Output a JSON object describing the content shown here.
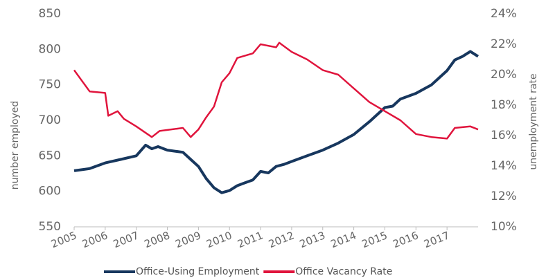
{
  "chart_data": {
    "type": "line",
    "y_label": "number employed",
    "y2_label": "unemployment rate",
    "xlim": [
      2005,
      2018
    ],
    "xticks": [
      2005,
      2006,
      2007,
      2008,
      2009,
      2010,
      2011,
      2012,
      2013,
      2014,
      2015,
      2016,
      2017
    ],
    "ylim": [
      550,
      850
    ],
    "yticks": [
      550,
      600,
      650,
      700,
      750,
      800,
      850
    ],
    "y2lim": [
      10,
      24
    ],
    "y2ticks": [
      {
        "value": 10,
        "label": "10%"
      },
      {
        "value": 12,
        "label": "12%"
      },
      {
        "value": 14,
        "label": "14%"
      },
      {
        "value": 16,
        "label": "16%"
      },
      {
        "value": 18,
        "label": "18%"
      },
      {
        "value": 20,
        "label": "20%"
      },
      {
        "value": 22,
        "label": "22%"
      },
      {
        "value": 24,
        "label": "24%"
      }
    ],
    "series": [
      {
        "name": "Office-Using Employment",
        "color": "#17375e",
        "x": [
          2005,
          2005.5,
          2006,
          2006.5,
          2007,
          2007.3,
          2007.5,
          2007.7,
          2008,
          2008.5,
          2008.75,
          2009,
          2009.25,
          2009.5,
          2009.75,
          2010,
          2010.25,
          2010.5,
          2010.75,
          2011,
          2011.25,
          2011.5,
          2011.75,
          2012,
          2012.5,
          2013,
          2013.5,
          2014,
          2014.5,
          2015,
          2015.25,
          2015.5,
          2016,
          2016.5,
          2017,
          2017.25,
          2017.5,
          2017.75,
          2018
        ],
        "values": [
          629,
          632,
          640,
          645,
          650,
          665,
          660,
          663,
          658,
          655,
          645,
          635,
          618,
          605,
          598,
          601,
          608,
          612,
          616,
          628,
          626,
          635,
          638,
          642,
          650,
          658,
          668,
          680,
          698,
          718,
          720,
          730,
          738,
          750,
          770,
          785,
          790,
          797,
          790
        ]
      },
      {
        "name": "Office Vacancy Rate",
        "color": "#e0143c",
        "axis": "y2",
        "x": [
          2005,
          2005.25,
          2005.5,
          2006,
          2006.1,
          2006.4,
          2006.6,
          2007,
          2007.5,
          2007.75,
          2008.5,
          2008.75,
          2009,
          2009.25,
          2009.5,
          2009.75,
          2010,
          2010.25,
          2010.75,
          2011,
          2011.5,
          2011.6,
          2012,
          2012.5,
          2013,
          2013.5,
          2014,
          2014.5,
          2015,
          2015.5,
          2016,
          2016.5,
          2017,
          2017.25,
          2017.75,
          2018
        ],
        "values": [
          20.3,
          19.6,
          18.9,
          18.8,
          17.3,
          17.6,
          17.1,
          16.6,
          15.9,
          16.3,
          16.5,
          15.9,
          16.4,
          17.2,
          17.9,
          19.5,
          20.1,
          21.1,
          21.4,
          22.0,
          21.8,
          22.1,
          21.5,
          21.0,
          20.3,
          20.0,
          19.1,
          18.2,
          17.6,
          17.0,
          16.1,
          15.9,
          15.8,
          16.5,
          16.6,
          16.4
        ]
      }
    ]
  }
}
